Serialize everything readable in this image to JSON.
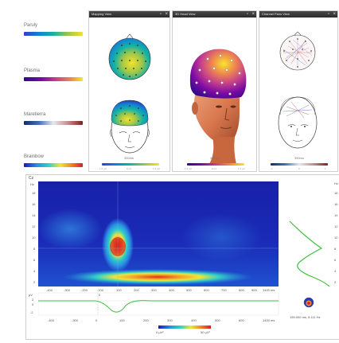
{
  "colormaps": [
    {
      "id": "parula",
      "name": "Paruly"
    },
    {
      "id": "plasma",
      "name": "Plasma"
    },
    {
      "id": "maretierra",
      "name": "Maretierra"
    },
    {
      "id": "brainbow",
      "name": "Brainbow"
    }
  ],
  "panels": {
    "mapping": {
      "title": "Mapping View",
      "time": "350ms",
      "ticks": [
        "-1.5 µV",
        "0 µV",
        "1.5 µV"
      ]
    },
    "head3d": {
      "title": "3D Head View",
      "time": "350ms",
      "ticks": [
        "-1.5 µV",
        "0 µV",
        "1.5 µV"
      ]
    },
    "channels": {
      "title": "Channel Pairs View",
      "time": "350ms",
      "ticks": [
        "-1",
        "0",
        "1"
      ]
    }
  },
  "tf": {
    "channel": "Cz",
    "hz_unit": "Hz",
    "freq_ticks": [
      "18",
      "16",
      "14",
      "12",
      "10",
      "8",
      "6",
      "4",
      "2"
    ],
    "right_ticks": [
      "Hz",
      "18",
      "16",
      "14",
      "12",
      "10",
      "8",
      "6",
      "4",
      "2"
    ],
    "time_ticks": [
      "-400",
      "-300",
      "-200",
      "-100",
      "0",
      "100",
      "200",
      "300",
      "400",
      "500",
      "600",
      "700",
      "800",
      "900"
    ],
    "time_unit": "1400 ms",
    "uv_label": "µV",
    "uv_ticks": [
      "2",
      "0",
      "-2"
    ],
    "cursor_readout": "155.000 ms, 8.111 Hz",
    "scale_min": "0 µV²",
    "scale_max": "50 µV²"
  }
}
